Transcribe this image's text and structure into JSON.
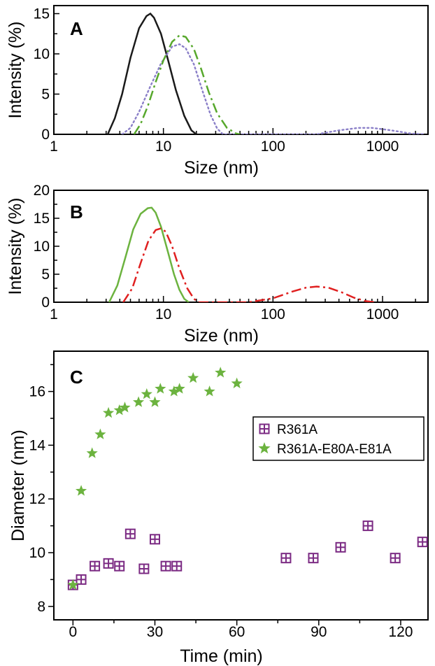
{
  "chart_data": [
    {
      "panel": "A",
      "type": "line",
      "xscale": "log",
      "xlim": [
        1,
        2600
      ],
      "ylim": [
        0,
        16
      ],
      "xlabel": "Size (nm)",
      "ylabel": "Intensity (%)",
      "xticks": [
        1,
        10,
        100,
        1000
      ],
      "xtick_labels": [
        "1",
        "10",
        "100",
        "1000"
      ],
      "yticks": [
        0,
        5,
        10,
        15
      ],
      "ytick_labels": [
        "0",
        "5",
        "10",
        "15"
      ],
      "series": [
        {
          "style": "solid",
          "color": "#1a1a1a",
          "x": [
            3.1,
            3.6,
            4.2,
            5.0,
            6.0,
            7.0,
            7.6,
            8.2,
            9.5,
            11.0,
            13.0,
            15.5,
            18.0,
            20.0
          ],
          "y": [
            0,
            2.0,
            5.0,
            9.5,
            13.2,
            14.7,
            15.0,
            14.5,
            12.5,
            9.3,
            5.5,
            2.3,
            0.5,
            0
          ]
        },
        {
          "style": "dotted",
          "color": "#8a7fc8",
          "x": [
            4.2,
            5.0,
            6.0,
            7.5,
            9.5,
            12.0,
            14.0,
            16.0,
            19.0,
            23.0,
            27.0,
            31.0,
            35.0,
            250,
            400,
            600,
            800,
            1200,
            1800,
            2400
          ],
          "y": [
            0,
            0.8,
            2.8,
            5.8,
            8.8,
            10.9,
            11.2,
            10.7,
            8.7,
            5.2,
            2.4,
            0.7,
            0,
            0,
            0.5,
            0.8,
            0.8,
            0.5,
            0.1,
            0
          ]
        },
        {
          "style": "dashdot",
          "color": "#57a82c",
          "x": [
            5.4,
            6.2,
            7.2,
            8.5,
            10.0,
            12.0,
            14.0,
            16.0,
            19.0,
            22.0,
            26.0,
            31.0,
            38.0,
            46.0,
            50.0
          ],
          "y": [
            0,
            1.3,
            3.5,
            6.5,
            9.2,
            11.5,
            12.3,
            12.1,
            10.6,
            8.2,
            5.2,
            2.6,
            0.8,
            0.1,
            0
          ]
        }
      ]
    },
    {
      "panel": "B",
      "type": "line",
      "xscale": "log",
      "xlim": [
        1,
        2600
      ],
      "ylim": [
        0,
        20
      ],
      "xlabel": "Size (nm)",
      "ylabel": "Intensity (%)",
      "xticks": [
        1,
        10,
        100,
        1000
      ],
      "xtick_labels": [
        "1",
        "10",
        "100",
        "1000"
      ],
      "yticks": [
        0,
        5,
        10,
        15,
        20
      ],
      "ytick_labels": [
        "0",
        "5",
        "10",
        "15",
        "20"
      ],
      "series": [
        {
          "style": "solid",
          "color": "#6cb33f",
          "x": [
            3.2,
            3.8,
            4.5,
            5.3,
            6.2,
            7.2,
            7.8,
            8.5,
            9.5,
            11.0,
            12.5,
            14.0,
            15.5,
            17.0
          ],
          "y": [
            0,
            3.0,
            8.0,
            13.0,
            15.8,
            16.8,
            16.9,
            16.0,
            13.5,
            9.0,
            5.0,
            2.2,
            0.6,
            0
          ]
        },
        {
          "style": "dashdot",
          "color": "#e02020",
          "x": [
            4.3,
            5.2,
            6.2,
            7.3,
            8.5,
            9.5,
            10.5,
            12.0,
            14.0,
            16.5,
            19.0,
            21.0,
            60,
            100,
            150,
            200,
            250,
            320,
            420,
            550,
            700,
            860
          ],
          "y": [
            0,
            2.5,
            7.0,
            11.0,
            12.9,
            13.2,
            12.6,
            10.0,
            6.0,
            2.5,
            0.6,
            0,
            0,
            0.7,
            1.9,
            2.6,
            2.8,
            2.6,
            1.8,
            0.8,
            0.2,
            0
          ]
        }
      ]
    },
    {
      "panel": "C",
      "type": "scatter",
      "xlim": [
        -7,
        130
      ],
      "ylim": [
        7.5,
        17.5
      ],
      "xlabel": "Time (min)",
      "ylabel": "Diameter (nm)",
      "xticks": [
        0,
        30,
        60,
        90,
        120
      ],
      "xtick_labels": [
        "0",
        "30",
        "60",
        "90",
        "120"
      ],
      "yticks": [
        8,
        10,
        12,
        14,
        16
      ],
      "ytick_labels": [
        "8",
        "10",
        "12",
        "14",
        "16"
      ],
      "legend_position": "top-right",
      "series": [
        {
          "name": "R361A",
          "marker": "boxed-plus",
          "color": "#7b2a83",
          "x": [
            0,
            3,
            8,
            13,
            17,
            21,
            26,
            30,
            34,
            38,
            78,
            88,
            98,
            108,
            118,
            128
          ],
          "y": [
            8.8,
            9.0,
            9.5,
            9.6,
            9.5,
            10.7,
            9.4,
            10.5,
            9.5,
            9.5,
            9.8,
            9.8,
            10.2,
            11.0,
            9.8,
            10.4
          ]
        },
        {
          "name": "R361A-E80A-E81A",
          "marker": "star",
          "color": "#6cb33f",
          "x": [
            0,
            3,
            7,
            10,
            13,
            17,
            19,
            24,
            27,
            30,
            32,
            37,
            39,
            44,
            50,
            54,
            60
          ],
          "y": [
            8.8,
            12.3,
            13.7,
            14.4,
            15.2,
            15.3,
            15.4,
            15.6,
            15.9,
            15.6,
            16.1,
            16.0,
            16.1,
            16.5,
            16.0,
            16.7,
            16.3
          ]
        }
      ]
    }
  ]
}
